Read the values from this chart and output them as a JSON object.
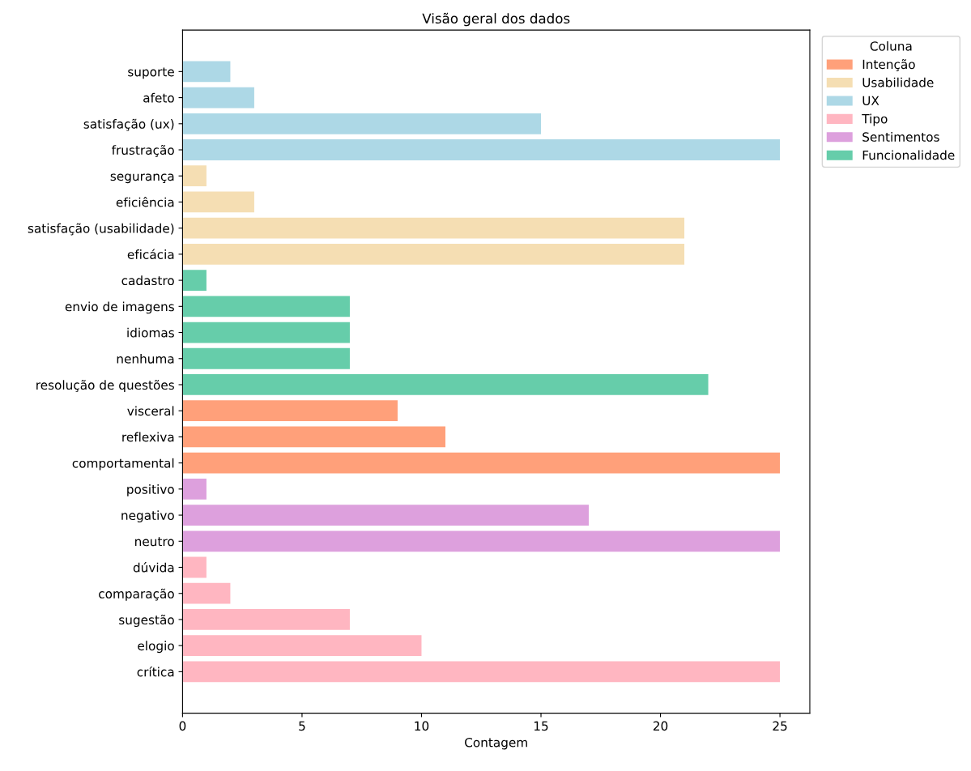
{
  "chart_data": {
    "type": "bar",
    "orientation": "horizontal",
    "title": "Visão geral dos dados",
    "xlabel": "Contagem",
    "legend_title": "Coluna",
    "legend": "top right",
    "categories": [
      "suporte",
      "afeto",
      "satisfação (ux)",
      "frustração",
      "segurança",
      "eficiência",
      "satisfação (usabilidade)",
      "eficácia",
      "cadastro",
      "envio de imagens",
      "idiomas",
      "nenhuma",
      "resolução de questões",
      "visceral",
      "reflexiva",
      "comportamental",
      "positivo",
      "negativo",
      "neutro",
      "dúvida",
      "comparação",
      "sugestão",
      "elogio",
      "crítica"
    ],
    "series": [
      {
        "name": "Intenção",
        "color": "#ffa07a",
        "values": [
          null,
          null,
          null,
          null,
          null,
          null,
          null,
          null,
          null,
          null,
          null,
          null,
          null,
          9,
          11,
          25,
          null,
          null,
          null,
          null,
          null,
          null,
          null,
          null
        ]
      },
      {
        "name": "Usabilidade",
        "color": "#f5deb3",
        "values": [
          null,
          null,
          null,
          null,
          1,
          3,
          21,
          21,
          null,
          null,
          null,
          null,
          null,
          null,
          null,
          null,
          null,
          null,
          null,
          null,
          null,
          null,
          null,
          null
        ]
      },
      {
        "name": "UX",
        "color": "#add8e6",
        "values": [
          2,
          3,
          15,
          25,
          null,
          null,
          null,
          null,
          null,
          null,
          null,
          null,
          null,
          null,
          null,
          null,
          null,
          null,
          null,
          null,
          null,
          null,
          null,
          null
        ]
      },
      {
        "name": "Tipo",
        "color": "#ffb6c1",
        "values": [
          null,
          null,
          null,
          null,
          null,
          null,
          null,
          null,
          null,
          null,
          null,
          null,
          null,
          null,
          null,
          null,
          null,
          null,
          null,
          1,
          2,
          7,
          10,
          25
        ]
      },
      {
        "name": "Sentimentos",
        "color": "#dda0dd",
        "values": [
          null,
          null,
          null,
          null,
          null,
          null,
          null,
          null,
          null,
          null,
          null,
          null,
          null,
          null,
          null,
          null,
          1,
          17,
          25,
          null,
          null,
          null,
          null,
          null
        ]
      },
      {
        "name": "Funcionalidade",
        "color": "#66cdaa",
        "values": [
          null,
          null,
          null,
          null,
          null,
          null,
          null,
          null,
          1,
          7,
          7,
          7,
          22,
          null,
          null,
          null,
          null,
          null,
          null,
          null,
          null,
          null,
          null,
          null
        ]
      }
    ],
    "xlim": [
      0,
      26.25
    ],
    "xticks": [
      0,
      5,
      10,
      15,
      20,
      25
    ]
  }
}
